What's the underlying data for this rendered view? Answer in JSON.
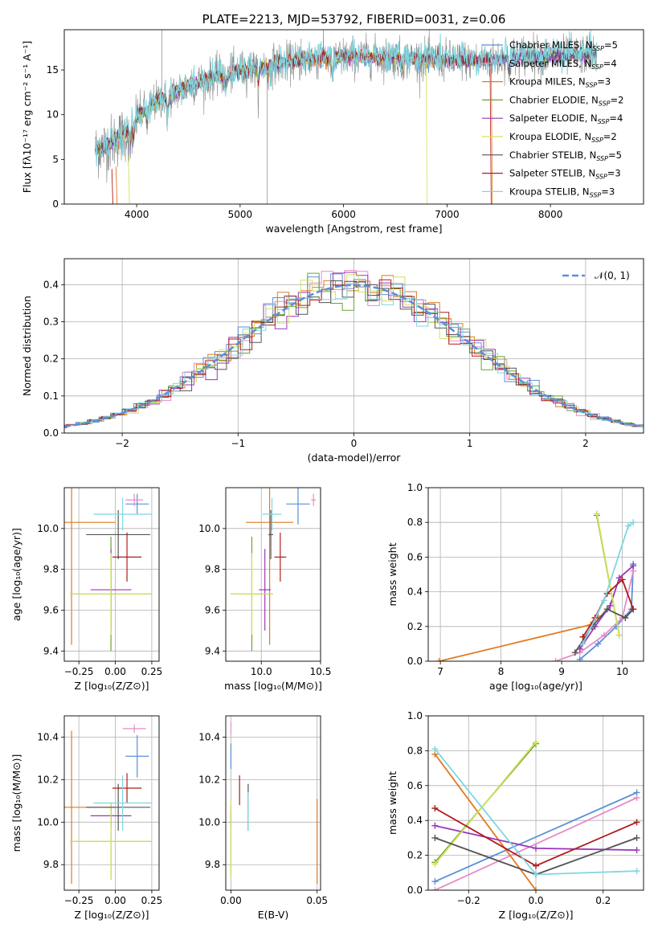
{
  "colors": {
    "chabrier_miles": "#5b8fd8",
    "salpeter_miles": "#e58cc8",
    "kroupa_miles": "#e07b1f",
    "chabrier_elodie": "#6aa430",
    "salpeter_elodie": "#9b37b8",
    "kroupa_elodie": "#d3e05c",
    "chabrier_stelib": "#555555",
    "salpeter_stelib": "#b01c1c",
    "kroupa_stelib": "#7fd6e0",
    "data_grey": "#888888",
    "normal_curve": "#5b8fd8"
  },
  "chart_data": [
    {
      "type": "line",
      "title": "PLATE=2213, MJD=53792, FIBERID=0031, z=0.06",
      "xlabel": "wavelength [Angstrom, rest frame]",
      "ylabel": "Flux [fλ10⁻¹⁷ erg cm⁻² s⁻¹ A⁻¹]",
      "xlim": [
        3300,
        8900
      ],
      "ylim": [
        0,
        19.5
      ],
      "xticks": [
        "4000",
        "5000",
        "6000",
        "7000",
        "8000"
      ],
      "yticks": [
        "0",
        "5",
        "10",
        "15"
      ],
      "legend_position": "upper-right",
      "legend": [
        {
          "label": "Chabrier MILES, N",
          "sub": "SSP",
          "tail": "=5",
          "color": "chabrier_miles"
        },
        {
          "label": "Salpeter MILES, N",
          "sub": "SSP",
          "tail": "=4",
          "color": "salpeter_miles"
        },
        {
          "label": "Kroupa MILES, N",
          "sub": "SSP",
          "tail": "=3",
          "color": "kroupa_miles"
        },
        {
          "label": "Chabrier ELODIE, N",
          "sub": "SSP",
          "tail": "=2",
          "color": "chabrier_elodie"
        },
        {
          "label": "Salpeter ELODIE, N",
          "sub": "SSP",
          "tail": "=4",
          "color": "salpeter_elodie"
        },
        {
          "label": "Kroupa ELODIE, N",
          "sub": "SSP",
          "tail": "=2",
          "color": "kroupa_elodie"
        },
        {
          "label": "Chabrier STELIB, N",
          "sub": "SSP",
          "tail": "=5",
          "color": "chabrier_stelib"
        },
        {
          "label": "Salpeter STELIB, N",
          "sub": "SSP",
          "tail": "=3",
          "color": "salpeter_stelib"
        },
        {
          "label": "Kroupa STELIB, N",
          "sub": "SSP",
          "tail": "=3",
          "color": "kroupa_stelib"
        }
      ],
      "continuum": [
        [
          3600,
          6.0
        ],
        [
          3700,
          6.5
        ],
        [
          3800,
          7.2
        ],
        [
          3900,
          8.0
        ],
        [
          4000,
          9.8
        ],
        [
          4100,
          10.6
        ],
        [
          4200,
          11.6
        ],
        [
          4300,
          12.0
        ],
        [
          4500,
          13.2
        ],
        [
          4700,
          14.0
        ],
        [
          4900,
          14.6
        ],
        [
          5100,
          15.1
        ],
        [
          5300,
          15.6
        ],
        [
          5500,
          15.9
        ],
        [
          5800,
          16.3
        ],
        [
          6000,
          16.5
        ],
        [
          6300,
          16.5
        ],
        [
          6600,
          16.3
        ],
        [
          7000,
          16.1
        ],
        [
          7300,
          16.0
        ],
        [
          7600,
          16.4
        ],
        [
          7800,
          16.7
        ],
        [
          8000,
          16.4
        ],
        [
          8200,
          16.6
        ],
        [
          8400,
          16.8
        ],
        [
          8450,
          17.0
        ]
      ],
      "absorption_features": [
        [
          3934,
          3.0
        ],
        [
          3969,
          2.5
        ],
        [
          4102,
          1.5
        ],
        [
          4300,
          2.5
        ],
        [
          4861,
          1.5
        ],
        [
          5175,
          2.0
        ],
        [
          5270,
          1.0
        ],
        [
          5892,
          2.2
        ],
        [
          6563,
          1.2
        ],
        [
          7600,
          1.5
        ],
        [
          8542,
          1.0
        ]
      ],
      "dropouts": [
        {
          "series": "kroupa_elodie",
          "x": 6800
        },
        {
          "series": "salpeter_stelib",
          "x": 7420
        },
        {
          "series": "kroupa_miles",
          "x": 7430
        }
      ]
    },
    {
      "type": "bar",
      "xlabel": "(data-model)/error",
      "ylabel": "Normed distribution",
      "xlim": [
        -2.5,
        2.5
      ],
      "ylim": [
        0,
        0.47
      ],
      "xticks": [
        "−2",
        "−1",
        "0",
        "1",
        "2"
      ],
      "yticks": [
        "0.0",
        "0.1",
        "0.2",
        "0.3",
        "0.4"
      ],
      "grid": true,
      "legend_position": "upper-right",
      "legend": [
        {
          "label": "𝒩(0, 1)",
          "color": "normal_curve"
        }
      ],
      "bin_width": 0.1
    },
    {
      "type": "scatter",
      "xlabel": "Z [log₁₀(Z/Z⊙)]",
      "ylabel": "age  [log₁₀(age/yr)]",
      "xlim": [
        -0.35,
        0.3
      ],
      "ylim": [
        9.35,
        10.2
      ],
      "xticks": [
        "−0.25",
        "0.00",
        "0.25"
      ],
      "yticks": [
        "9.4",
        "9.6",
        "9.8",
        "10.0"
      ],
      "grid": true,
      "points": [
        {
          "series": "chabrier_miles",
          "x": 0.15,
          "y": 10.12,
          "xerr": 0.08,
          "yerr": 0.05
        },
        {
          "series": "salpeter_miles",
          "x": 0.13,
          "y": 10.14,
          "xerr": 0.06,
          "yerr": 0.03
        },
        {
          "series": "kroupa_miles",
          "x": -0.3,
          "y": 10.03,
          "xerr": 0.3,
          "yerr": 0.6
        },
        {
          "series": "chabrier_elodie",
          "x": -0.03,
          "y": 9.68,
          "xerr": 0.28,
          "yerr": 0.28
        },
        {
          "series": "salpeter_elodie",
          "x": -0.03,
          "y": 9.7,
          "xerr": 0.14,
          "yerr": 0.2
        },
        {
          "series": "kroupa_elodie",
          "x": -0.03,
          "y": 9.68,
          "xerr": 0.28,
          "yerr": 0.2
        },
        {
          "series": "chabrier_stelib",
          "x": 0.02,
          "y": 9.97,
          "xerr": 0.22,
          "yerr": 0.12
        },
        {
          "series": "salpeter_stelib",
          "x": 0.08,
          "y": 9.86,
          "xerr": 0.1,
          "yerr": 0.12
        },
        {
          "series": "kroupa_stelib",
          "x": 0.05,
          "y": 10.07,
          "xerr": 0.2,
          "yerr": 0.08
        }
      ]
    },
    {
      "type": "scatter",
      "xlabel": "mass [log₁₀(M/M⊙)]",
      "xlim": [
        9.7,
        10.5
      ],
      "ylim": [
        9.35,
        10.2
      ],
      "xticks": [
        "10.0",
        "10.5"
      ],
      "yticks": [
        "9.4",
        "9.6",
        "9.8",
        "10.0"
      ],
      "grid": true,
      "points": [
        {
          "series": "chabrier_miles",
          "x": 10.31,
          "y": 10.12,
          "xerr": 0.1,
          "yerr": 0.1
        },
        {
          "series": "salpeter_miles",
          "x": 10.44,
          "y": 10.14,
          "xerr": 0.02,
          "yerr": 0.03
        },
        {
          "series": "kroupa_miles",
          "x": 10.07,
          "y": 10.03,
          "xerr": 0.2,
          "yerr": 0.6
        },
        {
          "series": "chabrier_elodie",
          "x": 9.92,
          "y": 9.68,
          "xerr": 0.18,
          "yerr": 0.28
        },
        {
          "series": "salpeter_elodie",
          "x": 10.03,
          "y": 9.7,
          "xerr": 0.05,
          "yerr": 0.2
        },
        {
          "series": "kroupa_elodie",
          "x": 9.92,
          "y": 9.68,
          "xerr": 0.18,
          "yerr": 0.2
        },
        {
          "series": "chabrier_stelib",
          "x": 10.08,
          "y": 9.97,
          "xerr": 0.02,
          "yerr": 0.12
        },
        {
          "series": "salpeter_stelib",
          "x": 10.16,
          "y": 9.86,
          "xerr": 0.05,
          "yerr": 0.12
        },
        {
          "series": "kroupa_stelib",
          "x": 10.09,
          "y": 10.07,
          "xerr": 0.08,
          "yerr": 0.08
        }
      ]
    },
    {
      "type": "line",
      "xlabel": "age  [log₁₀(age/yr)]",
      "ylabel": "mass weight",
      "xlim": [
        6.8,
        10.35
      ],
      "ylim": [
        0,
        1.0
      ],
      "xticks": [
        "7",
        "8",
        "9",
        "10"
      ],
      "yticks": [
        "0.0",
        "0.2",
        "0.4",
        "0.6",
        "0.8",
        "1.0"
      ],
      "grid": true,
      "series": [
        {
          "series": "chabrier_miles",
          "x": [
            9.3,
            9.6,
            9.9,
            10.15,
            10.18
          ],
          "y": [
            0.01,
            0.1,
            0.2,
            0.3,
            0.56
          ]
        },
        {
          "series": "salpeter_miles",
          "x": [
            8.9,
            9.3,
            9.7,
            10.0,
            10.18
          ],
          "y": [
            0.0,
            0.05,
            0.15,
            0.25,
            0.52
          ]
        },
        {
          "series": "kroupa_miles",
          "x": [
            6.98,
            9.48,
            9.6
          ],
          "y": [
            0.0,
            0.21,
            0.26
          ]
        },
        {
          "series": "chabrier_elodie",
          "x": [
            9.58,
            9.95
          ],
          "y": [
            0.84,
            0.15
          ]
        },
        {
          "series": "salpeter_elodie",
          "x": [
            9.3,
            9.55,
            9.8,
            9.95,
            10.18
          ],
          "y": [
            0.07,
            0.2,
            0.32,
            0.48,
            0.55
          ]
        },
        {
          "series": "kroupa_elodie",
          "x": [
            9.58,
            9.95
          ],
          "y": [
            0.85,
            0.15
          ]
        },
        {
          "series": "chabrier_stelib",
          "x": [
            9.22,
            9.5,
            9.75,
            10.05,
            10.18
          ],
          "y": [
            0.05,
            0.2,
            0.3,
            0.25,
            0.3
          ]
        },
        {
          "series": "salpeter_stelib",
          "x": [
            9.35,
            9.55,
            9.75,
            10.0,
            10.18
          ],
          "y": [
            0.14,
            0.25,
            0.39,
            0.47,
            0.3
          ]
        },
        {
          "series": "kroupa_stelib",
          "x": [
            9.35,
            9.7,
            10.1,
            10.18
          ],
          "y": [
            0.1,
            0.35,
            0.78,
            0.8
          ]
        }
      ]
    },
    {
      "type": "scatter",
      "xlabel": "Z [log₁₀(Z/Z⊙)]",
      "ylabel": "mass [log₁₀(M/M⊙)]",
      "xlim": [
        -0.35,
        0.3
      ],
      "ylim": [
        9.68,
        10.5
      ],
      "xticks": [
        "−0.25",
        "0.00",
        "0.25"
      ],
      "yticks": [
        "9.8",
        "10.0",
        "10.2",
        "10.4"
      ],
      "grid": true,
      "points": [
        {
          "series": "chabrier_miles",
          "x": 0.15,
          "y": 10.31,
          "xerr": 0.08,
          "yerr": 0.1
        },
        {
          "series": "salpeter_miles",
          "x": 0.13,
          "y": 10.44,
          "xerr": 0.08,
          "yerr": 0.02
        },
        {
          "series": "kroupa_miles",
          "x": -0.3,
          "y": 10.07,
          "xerr": 0.3,
          "yerr": 0.36
        },
        {
          "series": "chabrier_elodie",
          "x": -0.03,
          "y": 9.91,
          "xerr": 0.28,
          "yerr": 0.18
        },
        {
          "series": "salpeter_elodie",
          "x": -0.03,
          "y": 10.03,
          "xerr": 0.14,
          "yerr": 0.05
        },
        {
          "series": "kroupa_elodie",
          "x": -0.03,
          "y": 9.91,
          "xerr": 0.28,
          "yerr": 0.18
        },
        {
          "series": "chabrier_stelib",
          "x": 0.02,
          "y": 10.07,
          "xerr": 0.22,
          "yerr": 0.11
        },
        {
          "series": "salpeter_stelib",
          "x": 0.08,
          "y": 10.16,
          "xerr": 0.1,
          "yerr": 0.07
        },
        {
          "series": "kroupa_stelib",
          "x": 0.05,
          "y": 10.09,
          "xerr": 0.2,
          "yerr": 0.13
        }
      ]
    },
    {
      "type": "scatter",
      "xlabel": "E(B-V)",
      "xlim": [
        -0.003,
        0.052
      ],
      "ylim": [
        9.68,
        10.5
      ],
      "xticks": [
        "0.00",
        "0.05"
      ],
      "yticks": [
        "9.8",
        "10.0",
        "10.2",
        "10.4"
      ],
      "grid": true,
      "points": [
        {
          "series": "chabrier_miles",
          "x": 0.0,
          "y": 10.31,
          "xerr": 0,
          "yerr": 0.06
        },
        {
          "series": "salpeter_miles",
          "x": 0.0,
          "y": 10.44,
          "xerr": 0,
          "yerr": 0.03
        },
        {
          "series": "kroupa_miles",
          "x": 0.05,
          "y": 9.91,
          "xerr": 0,
          "yerr": 0.2
        },
        {
          "series": "chabrier_elodie",
          "x": 0.0,
          "y": 9.9,
          "xerr": 0,
          "yerr": 0.15
        },
        {
          "series": "salpeter_elodie",
          "x": 0.0,
          "y": 10.03,
          "xerr": 0,
          "yerr": 0.05
        },
        {
          "series": "kroupa_elodie",
          "x": 0.0,
          "y": 9.92,
          "xerr": 0,
          "yerr": 0.18
        },
        {
          "series": "chabrier_stelib",
          "x": 0.01,
          "y": 10.07,
          "xerr": 0,
          "yerr": 0.11
        },
        {
          "series": "salpeter_stelib",
          "x": 0.005,
          "y": 10.15,
          "xerr": 0,
          "yerr": 0.07
        },
        {
          "series": "kroupa_stelib",
          "x": 0.01,
          "y": 10.05,
          "xerr": 0,
          "yerr": 0.09
        }
      ]
    },
    {
      "type": "line",
      "xlabel": "Z [log₁₀(Z/Z⊙)]",
      "ylabel": "mass weight",
      "xlim": [
        -0.32,
        0.32
      ],
      "ylim": [
        0,
        1.0
      ],
      "xticks": [
        "−0.2",
        "0.0",
        "0.2"
      ],
      "yticks": [
        "0.0",
        "0.2",
        "0.4",
        "0.6",
        "0.8",
        "1.0"
      ],
      "grid": true,
      "series": [
        {
          "series": "chabrier_miles",
          "x": [
            -0.3,
            0.3
          ],
          "y": [
            0.05,
            0.56
          ]
        },
        {
          "series": "salpeter_miles",
          "x": [
            -0.3,
            0.3
          ],
          "y": [
            0.0,
            0.53
          ]
        },
        {
          "series": "kroupa_miles",
          "x": [
            -0.3,
            0.0
          ],
          "y": [
            0.78,
            0.0
          ]
        },
        {
          "series": "chabrier_elodie",
          "x": [
            -0.3,
            0.0
          ],
          "y": [
            0.16,
            0.84
          ]
        },
        {
          "series": "salpeter_elodie",
          "x": [
            -0.3,
            0.0,
            0.3
          ],
          "y": [
            0.37,
            0.24,
            0.23
          ]
        },
        {
          "series": "kroupa_elodie",
          "x": [
            -0.3,
            0.0
          ],
          "y": [
            0.15,
            0.85
          ]
        },
        {
          "series": "chabrier_stelib",
          "x": [
            -0.3,
            0.0,
            0.3
          ],
          "y": [
            0.3,
            0.09,
            0.3
          ]
        },
        {
          "series": "salpeter_stelib",
          "x": [
            -0.3,
            0.0,
            0.3
          ],
          "y": [
            0.47,
            0.14,
            0.39
          ]
        },
        {
          "series": "kroupa_stelib",
          "x": [
            -0.3,
            0.0,
            0.3
          ],
          "y": [
            0.81,
            0.09,
            0.11
          ]
        }
      ]
    }
  ]
}
